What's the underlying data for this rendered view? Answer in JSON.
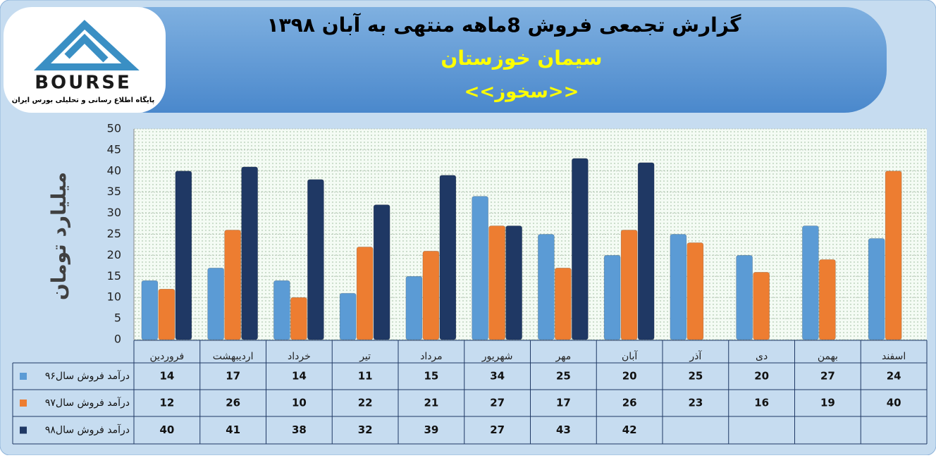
{
  "logo": {
    "text": "BOURSE",
    "subtitle": "پایگاه اطلاع رسانی و تحلیلی بورس ایران"
  },
  "chart_data": {
    "type": "bar",
    "title": "گزارش تجمعی فروش  8ماهه منتهی به آبان ۱۳۹۸",
    "subtitle": "سیمان خوزستان",
    "symbol": "<<سخوز>>",
    "y_label": "میلیارد تومان",
    "categories": [
      "فروردین",
      "اردیبهشت",
      "خرداد",
      "تیر",
      "مرداد",
      "شهریور",
      "مهر",
      "آبان",
      "آذر",
      "دی",
      "بهمن",
      "اسفند"
    ],
    "series": [
      {
        "name": "درآمد فروش سال۹۶",
        "color": "#5b9bd5",
        "values": [
          14,
          17,
          14,
          11,
          15,
          34,
          25,
          20,
          25,
          20,
          27,
          24
        ]
      },
      {
        "name": "درآمد فروش سال۹۷",
        "color": "#ed7d31",
        "values": [
          12,
          26,
          10,
          22,
          21,
          27,
          17,
          26,
          23,
          16,
          19,
          40
        ]
      },
      {
        "name": "درآمد فروش سال۹۸",
        "color": "#1f3864",
        "values": [
          40,
          41,
          38,
          32,
          39,
          27,
          43,
          42,
          null,
          null,
          null,
          null
        ]
      }
    ],
    "ylim": [
      0,
      50
    ],
    "yticks": [
      0,
      5,
      10,
      15,
      20,
      25,
      30,
      35,
      40,
      45,
      50
    ],
    "grid": true,
    "data_table": true
  }
}
